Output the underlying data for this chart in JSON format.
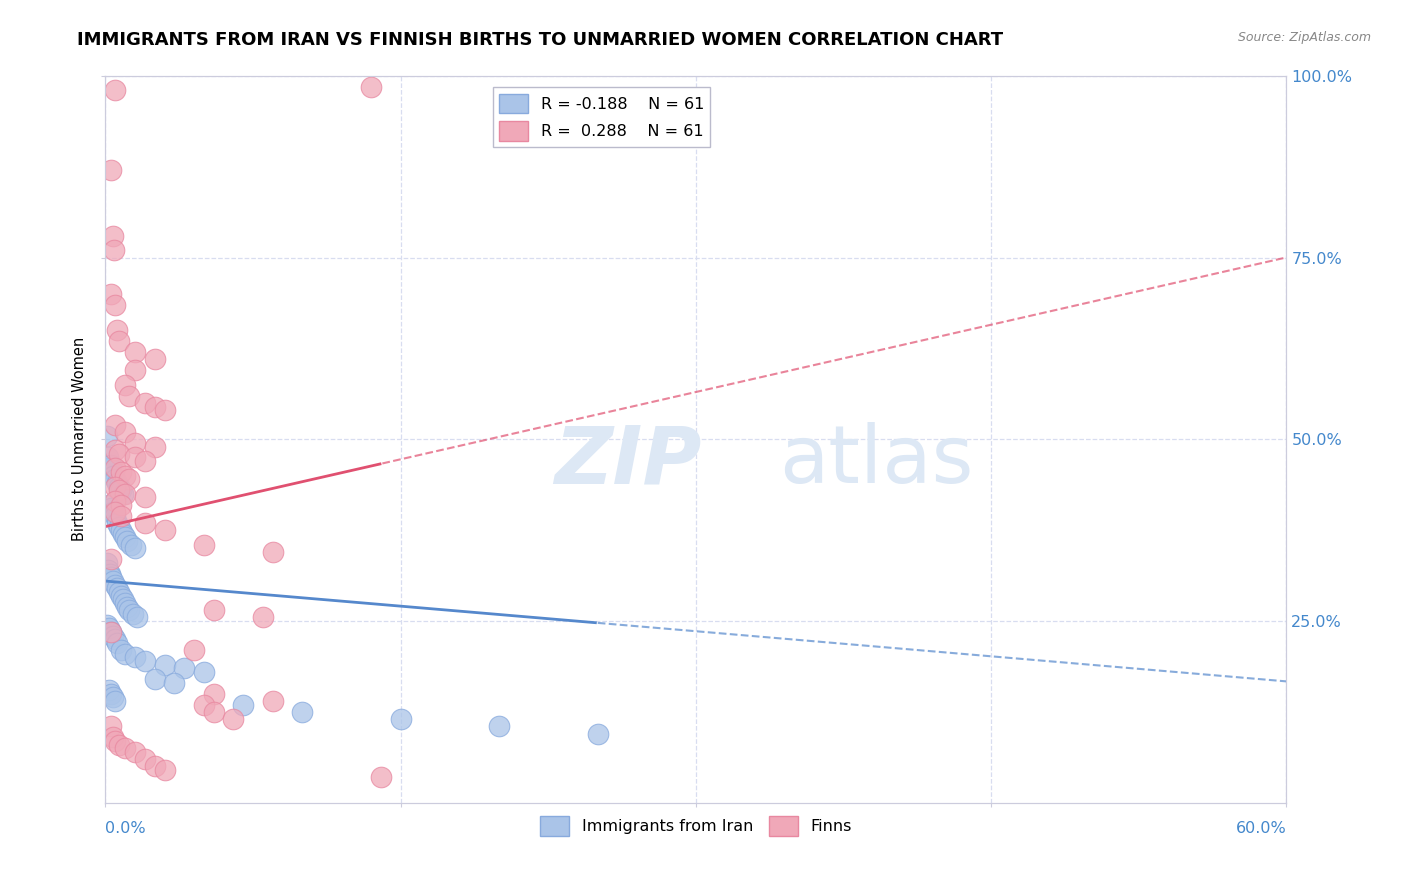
{
  "title": "IMMIGRANTS FROM IRAN VS FINNISH BIRTHS TO UNMARRIED WOMEN CORRELATION CHART",
  "source": "Source: ZipAtlas.com",
  "ylabel": "Births to Unmarried Women",
  "xlim": [
    0.0,
    60.0
  ],
  "ylim": [
    0.0,
    100.0
  ],
  "blue_color": "#aac4e8",
  "pink_color": "#f0a8b8",
  "blue_edge_color": "#88aadd",
  "pink_edge_color": "#e888a0",
  "blue_line_color": "#5588cc",
  "pink_line_color": "#e05070",
  "right_tick_color": "#4488cc",
  "bottom_tick_color": "#4488cc",
  "grid_color": "#d8ddf0",
  "ax_spine_color": "#ccccdd",
  "watermark_color": "#dde8f5",
  "blue_line_intercept": 30.5,
  "blue_line_slope": -0.23,
  "pink_line_intercept": 38.0,
  "pink_line_slope": 0.617,
  "blue_solid_end": 25.0,
  "pink_solid_end": 14.0,
  "blue_scatter": [
    [
      0.1,
      50.5
    ],
    [
      0.15,
      47.5
    ],
    [
      0.2,
      46.0
    ],
    [
      0.3,
      46.5
    ],
    [
      0.4,
      45.0
    ],
    [
      0.5,
      44.5
    ],
    [
      0.6,
      44.0
    ],
    [
      0.7,
      43.5
    ],
    [
      0.8,
      43.0
    ],
    [
      0.9,
      42.5
    ],
    [
      0.2,
      41.0
    ],
    [
      0.3,
      40.5
    ],
    [
      0.4,
      40.0
    ],
    [
      0.5,
      39.5
    ],
    [
      0.6,
      38.5
    ],
    [
      0.7,
      38.0
    ],
    [
      0.8,
      37.5
    ],
    [
      0.9,
      37.0
    ],
    [
      1.0,
      36.5
    ],
    [
      1.1,
      36.0
    ],
    [
      1.3,
      35.5
    ],
    [
      1.5,
      35.0
    ],
    [
      0.1,
      33.0
    ],
    [
      0.15,
      32.0
    ],
    [
      0.25,
      31.5
    ],
    [
      0.3,
      31.0
    ],
    [
      0.4,
      30.5
    ],
    [
      0.5,
      30.0
    ],
    [
      0.6,
      29.5
    ],
    [
      0.7,
      29.0
    ],
    [
      0.8,
      28.5
    ],
    [
      0.9,
      28.0
    ],
    [
      1.0,
      27.5
    ],
    [
      1.1,
      27.0
    ],
    [
      1.2,
      26.5
    ],
    [
      1.4,
      26.0
    ],
    [
      1.6,
      25.5
    ],
    [
      0.1,
      24.5
    ],
    [
      0.2,
      24.0
    ],
    [
      0.3,
      23.5
    ],
    [
      0.4,
      23.0
    ],
    [
      0.5,
      22.5
    ],
    [
      0.6,
      22.0
    ],
    [
      0.8,
      21.0
    ],
    [
      1.0,
      20.5
    ],
    [
      1.5,
      20.0
    ],
    [
      2.0,
      19.5
    ],
    [
      3.0,
      19.0
    ],
    [
      4.0,
      18.5
    ],
    [
      5.0,
      18.0
    ],
    [
      2.5,
      17.0
    ],
    [
      3.5,
      16.5
    ],
    [
      0.2,
      15.5
    ],
    [
      0.3,
      15.0
    ],
    [
      0.4,
      14.5
    ],
    [
      0.5,
      14.0
    ],
    [
      7.0,
      13.5
    ],
    [
      10.0,
      12.5
    ],
    [
      15.0,
      11.5
    ],
    [
      20.0,
      10.5
    ],
    [
      25.0,
      9.5
    ]
  ],
  "pink_scatter": [
    [
      0.5,
      98.0
    ],
    [
      13.5,
      98.5
    ],
    [
      0.3,
      87.0
    ],
    [
      0.4,
      78.0
    ],
    [
      0.45,
      76.0
    ],
    [
      0.3,
      70.0
    ],
    [
      0.5,
      68.5
    ],
    [
      0.6,
      65.0
    ],
    [
      0.7,
      63.5
    ],
    [
      1.5,
      62.0
    ],
    [
      2.5,
      61.0
    ],
    [
      1.5,
      59.5
    ],
    [
      1.0,
      57.5
    ],
    [
      1.2,
      56.0
    ],
    [
      2.0,
      55.0
    ],
    [
      2.5,
      54.5
    ],
    [
      3.0,
      54.0
    ],
    [
      0.5,
      52.0
    ],
    [
      1.0,
      51.0
    ],
    [
      1.5,
      49.5
    ],
    [
      2.5,
      49.0
    ],
    [
      0.5,
      48.5
    ],
    [
      0.7,
      48.0
    ],
    [
      1.5,
      47.5
    ],
    [
      2.0,
      47.0
    ],
    [
      0.5,
      46.0
    ],
    [
      0.8,
      45.5
    ],
    [
      1.0,
      45.0
    ],
    [
      1.2,
      44.5
    ],
    [
      0.5,
      43.5
    ],
    [
      0.7,
      43.0
    ],
    [
      1.0,
      42.5
    ],
    [
      2.0,
      42.0
    ],
    [
      0.5,
      41.5
    ],
    [
      0.8,
      41.0
    ],
    [
      0.5,
      40.0
    ],
    [
      0.8,
      39.5
    ],
    [
      2.0,
      38.5
    ],
    [
      3.0,
      37.5
    ],
    [
      5.0,
      35.5
    ],
    [
      8.5,
      34.5
    ],
    [
      0.3,
      33.5
    ],
    [
      5.5,
      26.5
    ],
    [
      8.0,
      25.5
    ],
    [
      4.5,
      21.0
    ],
    [
      0.3,
      23.5
    ],
    [
      5.5,
      15.0
    ],
    [
      8.5,
      14.0
    ],
    [
      5.0,
      13.5
    ],
    [
      5.5,
      12.5
    ],
    [
      6.5,
      11.5
    ],
    [
      0.3,
      10.5
    ],
    [
      0.4,
      9.0
    ],
    [
      0.5,
      8.5
    ],
    [
      0.7,
      8.0
    ],
    [
      1.0,
      7.5
    ],
    [
      1.5,
      7.0
    ],
    [
      2.0,
      6.0
    ],
    [
      2.5,
      5.0
    ],
    [
      3.0,
      4.5
    ],
    [
      14.0,
      3.5
    ]
  ],
  "legend_r_blue": "R = -0.188",
  "legend_r_pink": "R =  0.288",
  "legend_n": "N = 61",
  "legend_label_blue": "Immigrants from Iran",
  "legend_label_pink": "Finns"
}
